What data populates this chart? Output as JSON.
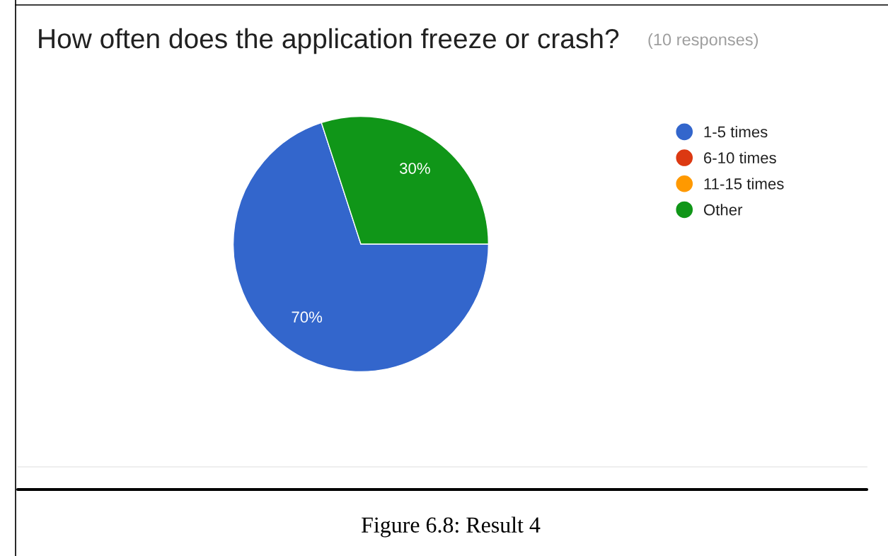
{
  "chart_data": {
    "type": "pie",
    "title": "How often does the application freeze or crash?",
    "subtitle": "(10 responses)",
    "categories": [
      "1-5 times",
      "6-10 times",
      "11-15 times",
      "Other"
    ],
    "values": [
      70,
      0,
      0,
      30
    ],
    "colors": [
      "#3366cc",
      "#dc3912",
      "#ff9900",
      "#109618"
    ],
    "value_labels": [
      "70%",
      null,
      null,
      "30%"
    ],
    "legend": "top right",
    "annotations": [
      "Figure 6.8: Result 4"
    ]
  }
}
